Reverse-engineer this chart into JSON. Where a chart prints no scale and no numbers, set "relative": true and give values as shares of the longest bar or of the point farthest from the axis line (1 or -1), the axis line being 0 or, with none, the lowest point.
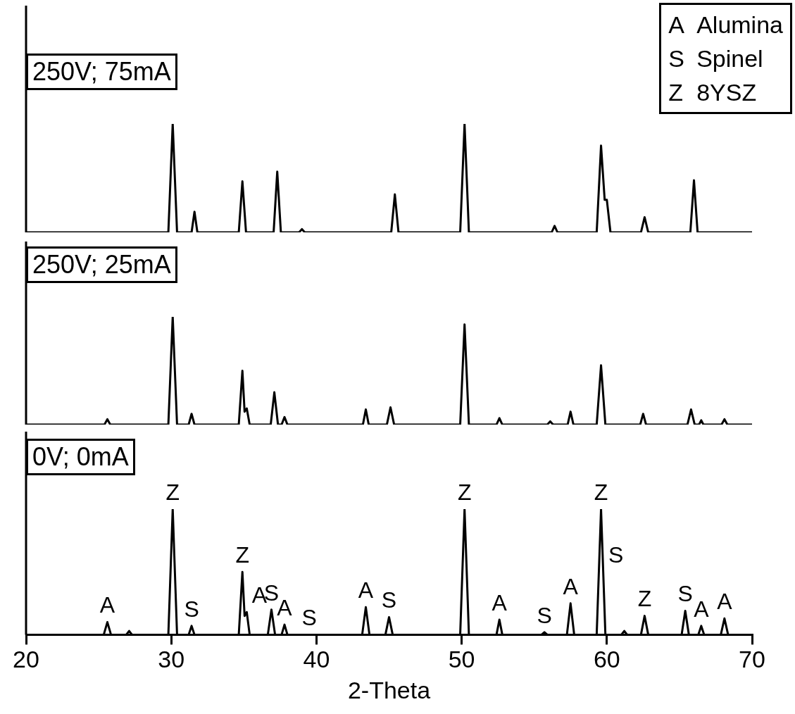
{
  "chart_data": [
    {
      "type": "line",
      "relative": true,
      "tick_labels": false,
      "xlim": [
        20,
        70
      ],
      "xticks": [
        20,
        30,
        40,
        50,
        60,
        70
      ],
      "annotations": [
        "250V; 75mA"
      ],
      "series": [
        {
          "color": "#000000",
          "x": [
            20,
            29.8,
            30.1,
            30.4,
            31.4,
            31.6,
            31.8,
            34.65,
            34.9,
            35.15,
            37.05,
            37.3,
            37.55,
            38.8,
            39.0,
            39.2,
            45.15,
            45.4,
            45.65,
            49.9,
            50.2,
            50.5,
            56.2,
            56.4,
            56.6,
            59.3,
            59.6,
            59.85,
            60.0,
            60.25,
            62.35,
            62.6,
            62.85,
            65.75,
            66.0,
            66.25,
            70
          ],
          "values": [
            0,
            0,
            1,
            0,
            0,
            0.19,
            0,
            0,
            0.47,
            0,
            0,
            0.56,
            0,
            0,
            0.03,
            0,
            0,
            0.35,
            0,
            0,
            1,
            0,
            0,
            0.06,
            0,
            0,
            0.8,
            0.3,
            0.3,
            0,
            0,
            0.14,
            0,
            0,
            0.48,
            0,
            0
          ]
        }
      ]
    },
    {
      "type": "line",
      "relative": true,
      "tick_labels": false,
      "xlim": [
        20,
        70
      ],
      "xticks": [
        20,
        30,
        40,
        50,
        60,
        70
      ],
      "annotations": [
        "250V; 25mA"
      ],
      "series": [
        {
          "color": "#000000",
          "x": [
            20,
            25.4,
            25.6,
            25.8,
            29.8,
            30.1,
            30.4,
            31.2,
            31.4,
            31.6,
            34.65,
            34.9,
            35.05,
            35.2,
            35.4,
            36.85,
            37.1,
            37.35,
            37.6,
            37.8,
            38.0,
            43.2,
            43.4,
            43.6,
            44.85,
            45.1,
            45.35,
            49.9,
            50.2,
            50.5,
            52.4,
            52.6,
            52.8,
            55.9,
            56.1,
            56.3,
            57.3,
            57.5,
            57.7,
            59.3,
            59.6,
            59.9,
            62.3,
            62.5,
            62.7,
            65.55,
            65.8,
            66.05,
            66.35,
            66.5,
            66.65,
            67.9,
            68.1,
            68.3,
            70
          ],
          "values": [
            0,
            0,
            0.05,
            0,
            0,
            1,
            0,
            0,
            0.1,
            0,
            0,
            0.5,
            0.12,
            0.15,
            0,
            0,
            0.3,
            0,
            0,
            0.07,
            0,
            0,
            0.14,
            0,
            0,
            0.16,
            0,
            0,
            0.93,
            0,
            0,
            0.06,
            0,
            0,
            0.03,
            0,
            0,
            0.12,
            0,
            0,
            0.55,
            0,
            0,
            0.1,
            0,
            0,
            0.14,
            0,
            0,
            0.04,
            0,
            0,
            0.05,
            0,
            0
          ]
        }
      ]
    },
    {
      "type": "line",
      "relative": true,
      "tick_labels": "x",
      "xlim": [
        20,
        70
      ],
      "xticks": [
        20,
        30,
        40,
        50,
        60,
        70
      ],
      "xlabel": "2-Theta",
      "annotations": [
        "0V; 0mA",
        "A Alumina",
        "S Spinel",
        "Z 8YSZ",
        {
          "text": "A",
          "x": 25.6,
          "y": 0.1
        },
        {
          "text": "A",
          "x": 35.2,
          "y": 0.18
        },
        {
          "text": "A",
          "x": 37.8,
          "y": 0.08
        },
        {
          "text": "A",
          "x": 43.4,
          "y": 0.22
        },
        {
          "text": "A",
          "x": 52.6,
          "y": 0.12
        },
        {
          "text": "A",
          "x": 57.5,
          "y": 0.25
        },
        {
          "text": "A",
          "x": 66.5,
          "y": 0.07
        },
        {
          "text": "A",
          "x": 68.1,
          "y": 0.13
        },
        {
          "text": "S",
          "x": 31.4,
          "y": 0.07
        },
        {
          "text": "S",
          "x": 36.9,
          "y": 0.2
        },
        {
          "text": "S",
          "x": 39.5,
          "y": 0
        },
        {
          "text": "S",
          "x": 45.0,
          "y": 0.14
        },
        {
          "text": "S",
          "x": 55.7,
          "y": 0.02
        },
        {
          "text": "S",
          "x": 59.75,
          "y": 0.5
        },
        {
          "text": "S",
          "x": 65.4,
          "y": 0.19
        },
        {
          "text": "Z",
          "x": 30.1,
          "y": 1
        },
        {
          "text": "Z",
          "x": 34.9,
          "y": 0.5
        },
        {
          "text": "Z",
          "x": 50.2,
          "y": 1
        },
        {
          "text": "Z",
          "x": 59.6,
          "y": 1
        },
        {
          "text": "Z",
          "x": 62.6,
          "y": 0.15
        }
      ],
      "series": [
        {
          "color": "#000000",
          "x": [
            20,
            25.35,
            25.6,
            25.85,
            26.9,
            27.1,
            27.3,
            29.8,
            30.1,
            30.4,
            31.2,
            31.4,
            31.6,
            34.65,
            34.9,
            35.05,
            35.2,
            35.4,
            36.65,
            36.9,
            37.15,
            37.6,
            37.8,
            38.0,
            43.15,
            43.4,
            43.65,
            44.75,
            45.0,
            45.25,
            49.9,
            50.2,
            50.5,
            52.4,
            52.6,
            52.8,
            55.5,
            55.7,
            55.9,
            57.25,
            57.5,
            57.75,
            59.3,
            59.6,
            59.9,
            61.0,
            61.2,
            61.4,
            62.35,
            62.6,
            62.85,
            65.15,
            65.4,
            65.65,
            66.3,
            66.5,
            66.7,
            67.85,
            68.1,
            68.35,
            70
          ],
          "values": [
            0,
            0,
            0.1,
            0,
            0,
            0.03,
            0,
            0,
            1,
            0,
            0,
            0.07,
            0,
            0,
            0.5,
            0.15,
            0.18,
            0,
            0,
            0.2,
            0,
            0,
            0.08,
            0,
            0,
            0.22,
            0,
            0,
            0.14,
            0,
            0,
            1,
            0,
            0,
            0.12,
            0,
            0,
            0.02,
            0,
            0,
            0.25,
            0,
            0,
            1,
            0,
            0,
            0.03,
            0,
            0,
            0.15,
            0,
            0,
            0.19,
            0,
            0,
            0.07,
            0,
            0,
            0.13,
            0,
            0
          ]
        }
      ]
    }
  ]
}
